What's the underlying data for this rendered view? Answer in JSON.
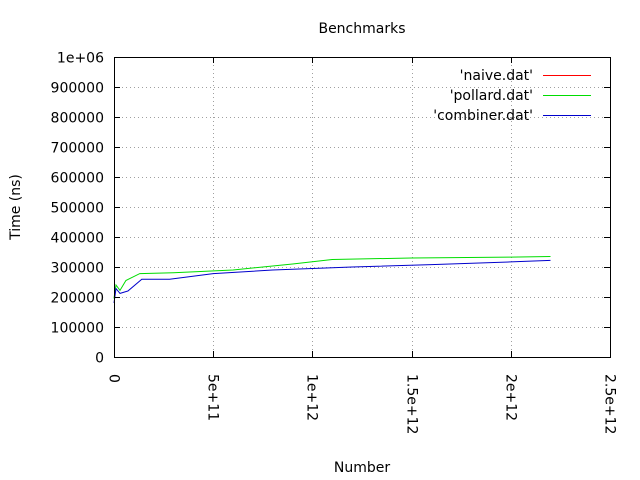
{
  "chart_data": {
    "type": "line",
    "title": "Benchmarks",
    "xlabel": "Number",
    "ylabel": "Time (ns)",
    "xlim": [
      0,
      2500000000000
    ],
    "ylim": [
      0,
      1000000
    ],
    "x_ticks": [
      {
        "value": 0,
        "label": "0"
      },
      {
        "value": 500000000000,
        "label": "5e+11"
      },
      {
        "value": 1000000000000,
        "label": "1e+12"
      },
      {
        "value": 1500000000000,
        "label": "1.5e+12"
      },
      {
        "value": 2000000000000,
        "label": "2e+12"
      },
      {
        "value": 2500000000000,
        "label": "2.5e+12"
      }
    ],
    "y_ticks": [
      {
        "value": 0,
        "label": "0"
      },
      {
        "value": 100000,
        "label": "100000"
      },
      {
        "value": 200000,
        "label": "200000"
      },
      {
        "value": 300000,
        "label": "300000"
      },
      {
        "value": 400000,
        "label": "400000"
      },
      {
        "value": 500000,
        "label": "500000"
      },
      {
        "value": 600000,
        "label": "600000"
      },
      {
        "value": 700000,
        "label": "700000"
      },
      {
        "value": 800000,
        "label": "800000"
      },
      {
        "value": 900000,
        "label": "900000"
      },
      {
        "value": 1000000,
        "label": "1e+06"
      }
    ],
    "grid": true,
    "legend_position": "top-right",
    "series": [
      {
        "name": "'naive.dat'",
        "color": "#ff0000",
        "x": [],
        "y": []
      },
      {
        "name": "'pollard.dat'",
        "color": "#00dd00",
        "x": [
          0,
          10000000000,
          30000000000,
          60000000000,
          130000000000,
          300000000000,
          600000000000,
          900000000000,
          1100000000000,
          1500000000000,
          2000000000000,
          2200000000000
        ],
        "y": [
          195000,
          240000,
          222000,
          255000,
          278000,
          281000,
          290000,
          310000,
          325000,
          330000,
          333000,
          335000
        ]
      },
      {
        "name": "'combiner.dat'",
        "color": "#0000cc",
        "x": [
          0,
          10000000000,
          30000000000,
          70000000000,
          140000000000,
          280000000000,
          500000000000,
          800000000000,
          1200000000000,
          1600000000000,
          2000000000000,
          2200000000000
        ],
        "y": [
          180000,
          228000,
          212000,
          220000,
          259000,
          259000,
          278000,
          290000,
          300000,
          308000,
          317000,
          322000
        ]
      }
    ]
  }
}
